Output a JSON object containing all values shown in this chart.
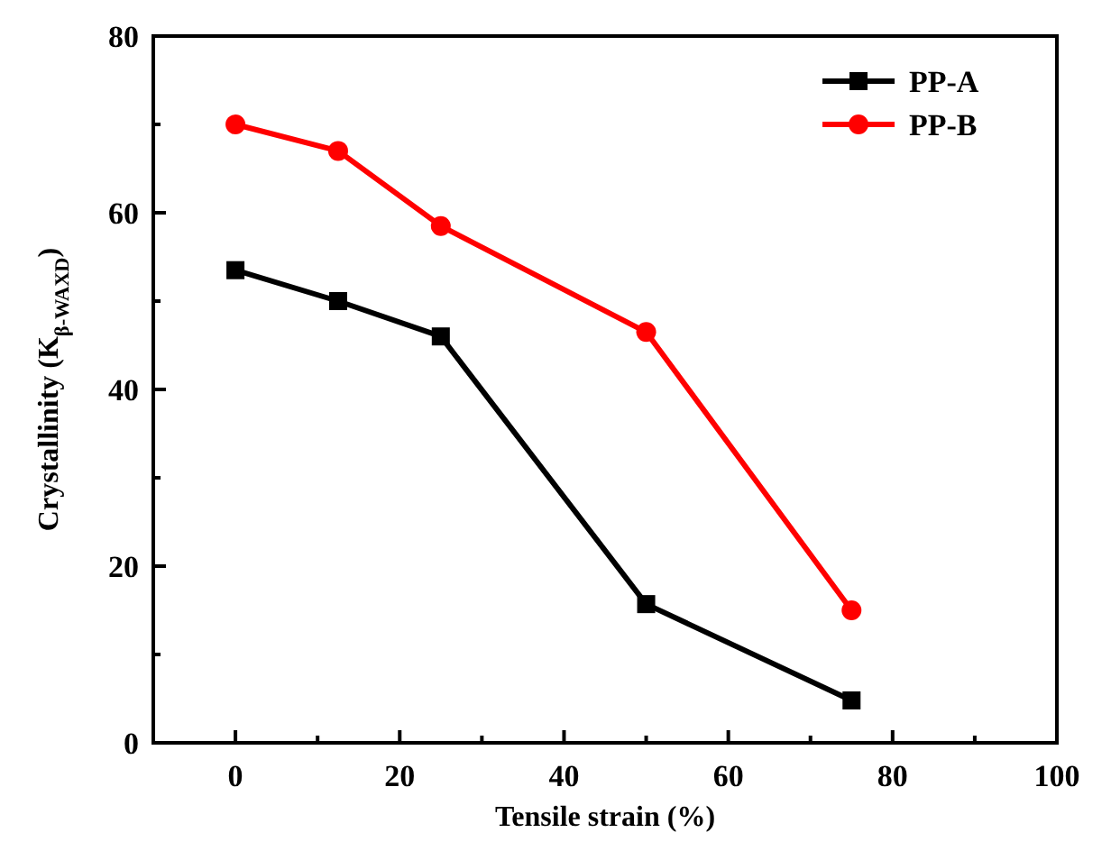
{
  "chart_data": {
    "type": "line",
    "xlabel": "Tensile strain (%)",
    "ylabel": "Crystallinity (K$_{β-WAXD}$)",
    "x": [
      0,
      12.5,
      25,
      50,
      75
    ],
    "series": [
      {
        "name": "PP-A",
        "color": "#000000",
        "marker": "square",
        "values": [
          53.5,
          50,
          46,
          15.7,
          4.8
        ]
      },
      {
        "name": "PP-B",
        "color": "#ff0000",
        "marker": "circle",
        "values": [
          70,
          67,
          58.5,
          46.5,
          15
        ]
      }
    ],
    "xlim": [
      -10,
      100
    ],
    "xticks": [
      0,
      {
        "value": 10,
        "label": null
      },
      20,
      {
        "value": 30,
        "label": null
      },
      40,
      {
        "value": 50,
        "label": null
      },
      60,
      {
        "value": 70,
        "label": null
      },
      80,
      {
        "value": 90,
        "label": null
      },
      100
    ],
    "ylim": [
      0,
      80
    ],
    "yticks": [
      0,
      {
        "value": 10,
        "label": null
      },
      20,
      {
        "value": 30,
        "label": null
      },
      40,
      {
        "value": 50,
        "label": null
      },
      60,
      {
        "value": 70,
        "label": null
      },
      80
    ],
    "grid": false,
    "legend": "top right",
    "line_style": "solid"
  }
}
